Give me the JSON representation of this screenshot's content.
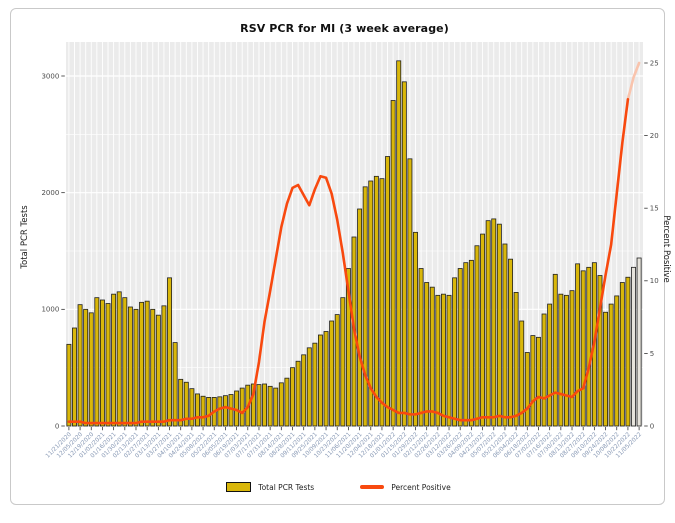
{
  "page": {
    "background": "#ffffff"
  },
  "card": {
    "background": "#ffffff",
    "border_color": "#c9c9c9"
  },
  "chart_data": {
    "type": "bar+line",
    "title": "RSV PCR for MI (3 week average)",
    "panel": {
      "background": "#EBEBEB",
      "grid_color": "#FFFFFF"
    },
    "x": {
      "tick_label_every": 2,
      "tick_label_rotation_deg": -45,
      "tick_label_color": "#8899B5",
      "dates": [
        "11/21/2020",
        "11/28/2020",
        "12/05/2020",
        "12/12/2020",
        "12/19/2020",
        "12/26/2020",
        "01/02/2021",
        "01/09/2021",
        "01/16/2021",
        "01/23/2021",
        "01/30/2021",
        "02/06/2021",
        "02/13/2021",
        "02/20/2021",
        "02/27/2021",
        "03/06/2021",
        "03/13/2021",
        "03/20/2021",
        "03/27/2021",
        "04/03/2021",
        "04/10/2021",
        "04/17/2021",
        "04/24/2021",
        "05/01/2021",
        "05/08/2021",
        "05/15/2021",
        "05/22/2021",
        "05/29/2021",
        "06/05/2021",
        "06/12/2021",
        "06/19/2021",
        "06/26/2021",
        "07/03/2021",
        "07/10/2021",
        "07/17/2021",
        "07/24/2021",
        "07/31/2021",
        "08/07/2021",
        "08/14/2021",
        "08/21/2021",
        "08/28/2021",
        "09/04/2021",
        "09/11/2021",
        "09/18/2021",
        "09/25/2021",
        "10/02/2021",
        "10/09/2021",
        "10/16/2021",
        "10/23/2021",
        "10/30/2021",
        "11/06/2021",
        "11/13/2021",
        "11/20/2021",
        "11/27/2021",
        "12/04/2021",
        "12/11/2021",
        "12/18/2021",
        "12/25/2021",
        "01/01/2022",
        "01/08/2022",
        "01/15/2022",
        "01/22/2022",
        "01/29/2022",
        "02/05/2022",
        "02/12/2022",
        "02/19/2022",
        "02/26/2022",
        "03/05/2022",
        "03/12/2022",
        "03/19/2022",
        "03/26/2022",
        "04/02/2022",
        "04/09/2022",
        "04/16/2022",
        "04/23/2022",
        "04/30/2022",
        "05/07/2022",
        "05/14/2022",
        "05/21/2022",
        "05/28/2022",
        "06/04/2022",
        "06/11/2022",
        "06/18/2022",
        "06/25/2022",
        "07/02/2022",
        "07/09/2022",
        "07/16/2022",
        "07/23/2022",
        "07/30/2022",
        "08/06/2022",
        "08/13/2022",
        "08/20/2022",
        "08/27/2022",
        "09/03/2022",
        "09/10/2022",
        "09/17/2022",
        "09/24/2022",
        "10/01/2022",
        "10/08/2022",
        "10/15/2022",
        "10/22/2022",
        "10/29/2022",
        "11/05/2022"
      ]
    },
    "series": [
      {
        "name": "Total PCR Tests",
        "type": "bar",
        "axis": "left",
        "color": "#D9B70A",
        "stroke": "#202020",
        "values": [
          700,
          840,
          1040,
          1000,
          970,
          1100,
          1080,
          1050,
          1130,
          1150,
          1100,
          1020,
          1000,
          1060,
          1070,
          1000,
          950,
          1030,
          1270,
          715,
          400,
          375,
          320,
          275,
          255,
          245,
          245,
          250,
          260,
          270,
          300,
          325,
          350,
          360,
          355,
          360,
          340,
          325,
          370,
          410,
          500,
          555,
          610,
          670,
          710,
          780,
          810,
          900,
          955,
          1100,
          1350,
          1620,
          1860,
          2050,
          2100,
          2140,
          2120,
          2310,
          2790,
          3130,
          2950,
          2290,
          1660,
          1350,
          1230,
          1190,
          1120,
          1130,
          1120,
          1270,
          1350,
          1400,
          1420,
          1545,
          1645,
          1760,
          1775,
          1730,
          1560,
          1430,
          1145,
          900,
          630,
          775,
          760,
          960,
          1045,
          1300,
          1130,
          1120,
          1160,
          1390,
          1330,
          1360,
          1400,
          1290,
          975,
          1045,
          1115,
          1230,
          1275,
          1360,
          1440
        ]
      },
      {
        "name": "Percent Positive",
        "type": "line",
        "axis": "right",
        "color": "#F8490F",
        "values": [
          0.3,
          0.3,
          0.3,
          0.2,
          0.2,
          0.2,
          0.2,
          0.2,
          0.2,
          0.2,
          0.2,
          0.2,
          0.2,
          0.3,
          0.3,
          0.3,
          0.3,
          0.3,
          0.4,
          0.4,
          0.4,
          0.5,
          0.5,
          0.6,
          0.6,
          0.7,
          1.0,
          1.2,
          1.3,
          1.2,
          1.1,
          0.9,
          1.3,
          2.2,
          4.4,
          7.2,
          9.3,
          11.5,
          13.7,
          15.3,
          16.4,
          16.6,
          15.9,
          15.2,
          16.3,
          17.2,
          17.1,
          16.0,
          14.2,
          11.9,
          9.3,
          6.7,
          4.8,
          3.5,
          2.6,
          2.0,
          1.6,
          1.3,
          1.1,
          0.9,
          0.9,
          0.8,
          0.8,
          0.9,
          1.0,
          1.0,
          0.9,
          0.7,
          0.6,
          0.5,
          0.4,
          0.4,
          0.4,
          0.5,
          0.6,
          0.6,
          0.6,
          0.7,
          0.6,
          0.6,
          0.7,
          0.9,
          1.2,
          1.7,
          2.0,
          1.9,
          2.1,
          2.3,
          2.2,
          2.1,
          2.0,
          2.4,
          2.6,
          4.0,
          5.8,
          8.1,
          10.4,
          12.5,
          16.0,
          19.5,
          22.5,
          24.0,
          25.0
        ]
      }
    ],
    "muted_tail": {
      "weeks": 2,
      "bar_fill": "#E7E4DC",
      "line_stroke": "#F9C4AD"
    },
    "left_axis": {
      "label": "Total PCR Tests",
      "ticks": [
        0,
        1000,
        2000,
        3000
      ],
      "range": [
        0,
        3250
      ],
      "tick_color": "#4d4d4d"
    },
    "right_axis": {
      "label": "Percent Positive",
      "ticks": [
        0,
        5,
        10,
        15,
        20,
        25
      ],
      "range": [
        0,
        25.7
      ],
      "tick_color": "#4d4d4d"
    },
    "legend": {
      "position": "bottom",
      "entries": [
        "Total PCR Tests",
        "Percent Positive"
      ]
    }
  }
}
